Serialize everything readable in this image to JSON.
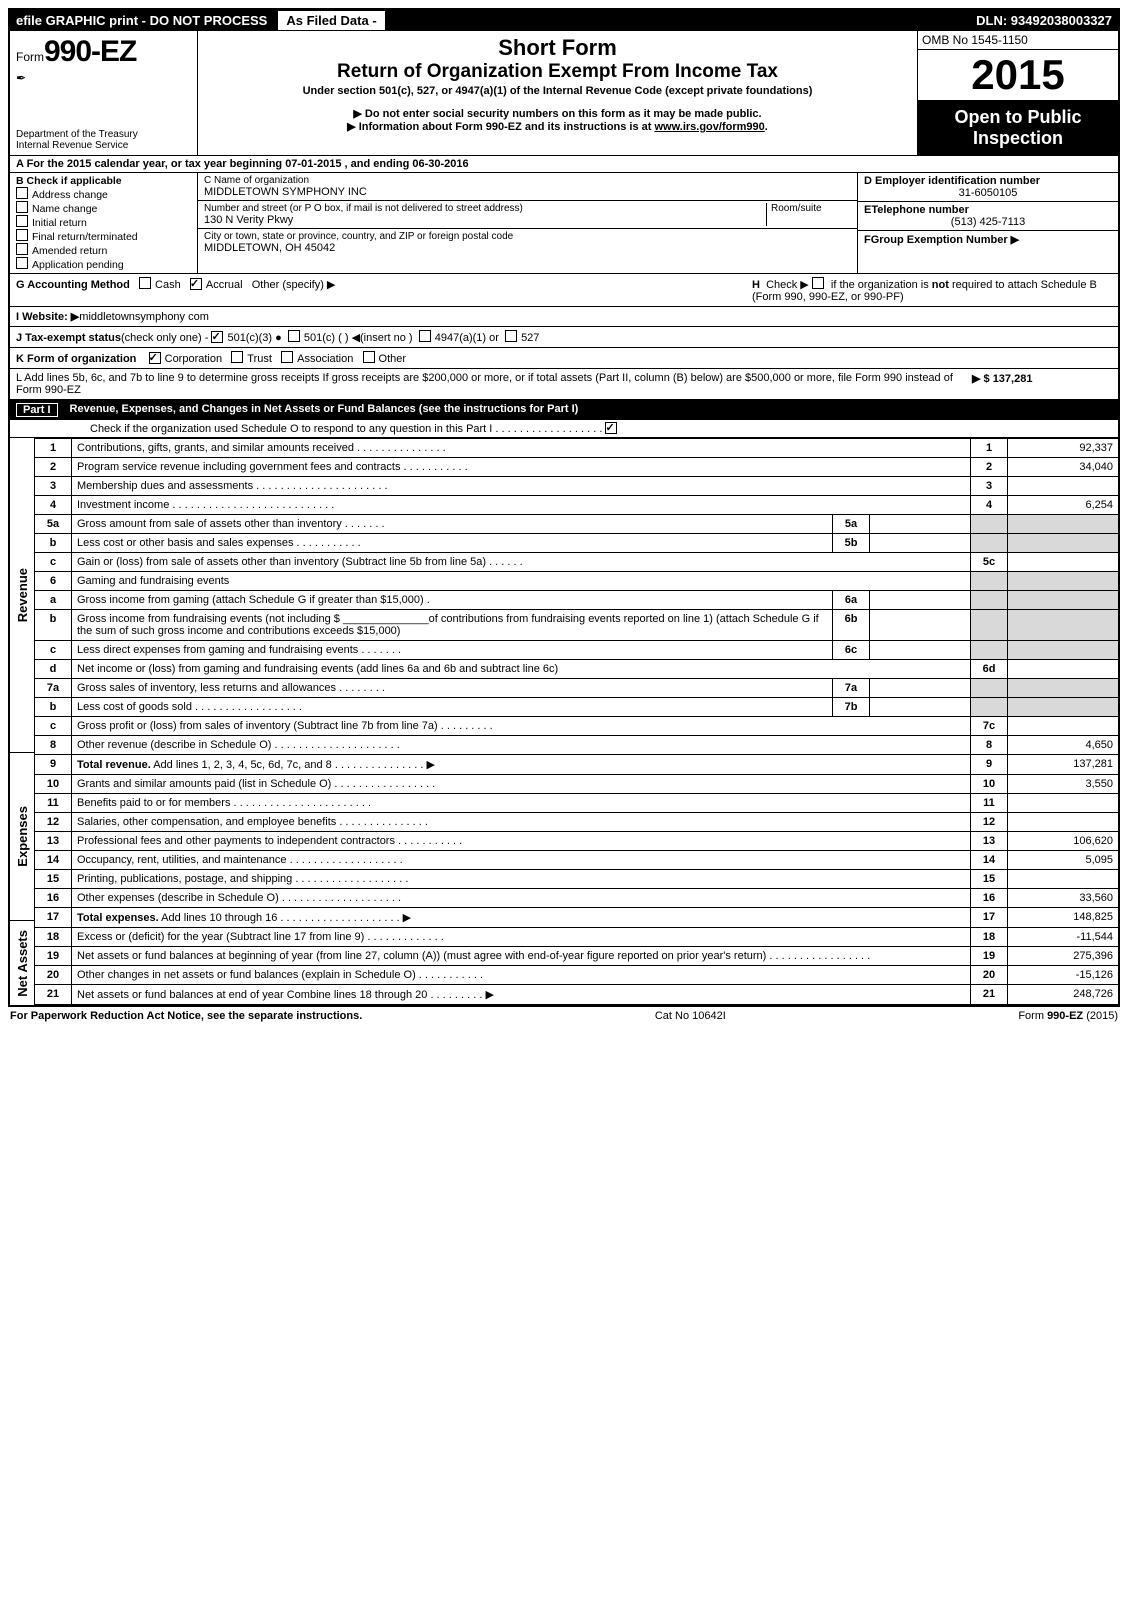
{
  "topbar": {
    "efile": "efile GRAPHIC print - DO NOT PROCESS",
    "asfiled": "As Filed Data -",
    "dln": "DLN: 93492038003327"
  },
  "header": {
    "form_prefix": "Form",
    "form_no": "990-EZ",
    "dept1": "Department of the Treasury",
    "dept2": "Internal Revenue Service",
    "short": "Short Form",
    "title": "Return of Organization Exempt From Income Tax",
    "sub": "Under section 501(c), 527, or 4947(a)(1) of the Internal Revenue Code (except private foundations)",
    "note1": "▶ Do not enter social security numbers on this form as it may be made public.",
    "note2_pre": "▶ Information about Form 990-EZ and its instructions is at ",
    "note2_link": "www.irs.gov/form990",
    "omb": "OMB No  1545-1150",
    "year": "2015",
    "open1": "Open to Public",
    "open2": "Inspection"
  },
  "row_a": "A  For the 2015 calendar year, or tax year beginning 07-01-2015           , and ending 06-30-2016",
  "b": {
    "hdr": "B  Check if applicable",
    "items": [
      "Address change",
      "Name change",
      "Initial return",
      "Final return/terminated",
      "Amended return",
      "Application pending"
    ]
  },
  "c": {
    "name_lbl": "C Name of organization",
    "name": "MIDDLETOWN SYMPHONY INC",
    "street_lbl": "Number and street (or P  O  box, if mail is not delivered to street address)",
    "room_lbl": "Room/suite",
    "street": "130 N Verity Pkwy",
    "city_lbl": "City or town, state or province, country, and ZIP or foreign postal code",
    "city": "MIDDLETOWN, OH  45042"
  },
  "d": {
    "lbl": "D Employer identification number",
    "val": "31-6050105"
  },
  "e": {
    "lbl": "ETelephone number",
    "val": "(513) 425-7113"
  },
  "f": {
    "lbl": "FGroup Exemption Number    ▶"
  },
  "g": {
    "lbl": "G Accounting Method",
    "cash": "Cash",
    "accrual": "Accrual",
    "other": "Other (specify) ▶"
  },
  "h": {
    "text": "H   Check ▶        if the organization is not required to attach Schedule B (Form 990, 990-EZ, or 990-PF)"
  },
  "i": {
    "lbl": "I Website: ▶",
    "val": "middletownsymphony com"
  },
  "j": {
    "lbl": "J Tax-exempt status",
    "rest": "(check only one) -",
    "o1": "501(c)(3)",
    "o2": "501(c) (   ) ◀(insert no )",
    "o3": "4947(a)(1) or",
    "o4": "527"
  },
  "k": {
    "lbl": "K Form of organization",
    "opts": [
      "Corporation",
      "Trust",
      "Association",
      "Other"
    ]
  },
  "l": {
    "text": "L Add lines 5b, 6c, and 7b to line 9 to determine gross receipts  If gross receipts are $200,000 or more, or if total assets (Part II, column (B) below) are $500,000 or more, file Form 990 instead of Form 990-EZ",
    "amt": "▶ $ 137,281"
  },
  "part1": {
    "label": "Part I",
    "title": "Revenue, Expenses, and Changes in Net Assets or Fund Balances",
    "note": "(see the instructions for Part I)",
    "check": "Check if the organization used Schedule O to respond to any question in this Part I  .  .  .  .  .  .  .  .  .  .  .  .  .  .  .  .  .  ."
  },
  "side": {
    "rev": "Revenue",
    "exp": "Expenses",
    "na": "Net Assets"
  },
  "lines": [
    {
      "n": "1",
      "d": "Contributions, gifts, grants, and similar amounts received       .   .   .   .   .   .   .   .   .   .   .   .   .   .   .",
      "num": "1",
      "amt": "92,337"
    },
    {
      "n": "2",
      "d": "Program service revenue including government fees and contracts       .   .   .   .   .   .   .   .   .   .   .",
      "num": "2",
      "amt": "34,040"
    },
    {
      "n": "3",
      "d": "Membership dues and assessments         .   .   .   .   .   .   .   .   .   .   .   .   .   .   .   .   .   .   .   .   .   .",
      "num": "3",
      "amt": ""
    },
    {
      "n": "4",
      "d": "Investment income       .   .   .   .   .   .   .   .   .   .   .   .   .   .   .   .   .   .   .   .   .   .   .   .   .   .   .",
      "num": "4",
      "amt": "6,254"
    },
    {
      "n": "5a",
      "d": "Gross amount from sale of assets other than inventory         .   .   .   .   .   .   .",
      "sub": "5a",
      "samt": ""
    },
    {
      "n": "b",
      "d": "Less  cost or other basis and sales expenses         .   .   .   .   .   .   .   .   .   .   .",
      "sub": "5b",
      "samt": ""
    },
    {
      "n": "c",
      "d": "Gain or (loss) from sale of assets other than inventory (Subtract line 5b from line 5a)    .   .   .   .   .   .",
      "num": "5c",
      "amt": ""
    },
    {
      "n": "6",
      "d": "Gaming and fundraising events",
      "grey": true
    },
    {
      "n": "a",
      "d": "Gross income from gaming (attach Schedule G if greater than $15,000)             .",
      "sub": "6a",
      "samt": ""
    },
    {
      "n": "b",
      "d": "Gross income from fundraising events (not including $ ______________of contributions from fundraising events reported on line 1) (attach Schedule G if the sum of such gross income and contributions exceeds $15,000)",
      "sub": "6b",
      "samt": ""
    },
    {
      "n": "c",
      "d": "Less  direct expenses from gaming and fundraising events       .   .   .   .   .   .   .",
      "sub": "6c",
      "samt": ""
    },
    {
      "n": "d",
      "d": "Net income or (loss) from gaming and fundraising events (add lines 6a and 6b and subtract line 6c)",
      "num": "6d",
      "amt": ""
    },
    {
      "n": "7a",
      "d": "Gross sales of inventory, less returns and allowances         .   .   .   .   .   .   .   .",
      "sub": "7a",
      "samt": ""
    },
    {
      "n": "b",
      "d": "Less  cost of goods sold           .   .   .   .   .   .   .   .   .   .   .   .   .   .   .   .   .   .",
      "sub": "7b",
      "samt": ""
    },
    {
      "n": "c",
      "d": "Gross profit or (loss) from sales of inventory (Subtract line 7b from line 7a)     .   .   .   .   .   .   .   .   .",
      "num": "7c",
      "amt": ""
    },
    {
      "n": "8",
      "d": "Other revenue (describe in Schedule O)      .   .   .   .   .   .   .   .   .   .   .   .   .   .   .   .   .   .   .   .   .",
      "num": "8",
      "amt": "4,650"
    },
    {
      "n": "9",
      "d": "<b>Total revenue.</b> Add lines 1, 2, 3, 4, 5c, 6d, 7c, and 8      .   .   .   .   .   .   .   .   .   .   .   .   .   .   .   ▶",
      "num": "9",
      "amt": "137,281"
    },
    {
      "n": "10",
      "d": "Grants and similar amounts paid (list in Schedule O)    .   .   .   .   .   .   .   .   .   .   .   .   .   .   .   .   .",
      "num": "10",
      "amt": "3,550"
    },
    {
      "n": "11",
      "d": "Benefits paid to or for members       .   .   .   .   .   .   .   .   .   .   .   .   .   .   .   .   .   .   .   .   .   .   .",
      "num": "11",
      "amt": ""
    },
    {
      "n": "12",
      "d": "Salaries, other compensation, and employee benefits         .   .   .   .   .   .   .   .   .   .   .   .   .   .   .",
      "num": "12",
      "amt": ""
    },
    {
      "n": "13",
      "d": "Professional fees and other payments to independent contractors       .   .   .   .   .   .   .   .   .   .   .",
      "num": "13",
      "amt": "106,620"
    },
    {
      "n": "14",
      "d": "Occupancy, rent, utilities, and maintenance       .   .   .   .   .   .   .   .   .   .   .   .   .   .   .   .   .   .   .",
      "num": "14",
      "amt": "5,095"
    },
    {
      "n": "15",
      "d": "Printing, publications, postage, and shipping       .   .   .   .   .   .   .   .   .   .   .   .   .   .   .   .   .   .   .",
      "num": "15",
      "amt": ""
    },
    {
      "n": "16",
      "d": "Other expenses (describe in Schedule O)      .   .   .   .   .   .   .   .   .   .   .   .   .   .   .   .   .   .   .   .",
      "num": "16",
      "amt": "33,560"
    },
    {
      "n": "17",
      "d": "<b>Total expenses.</b> Add lines 10 through 16       .   .   .   .   .   .   .   .   .   .   .   .   .   .   .   .   .   .   .   .   ▶",
      "num": "17",
      "amt": "148,825"
    },
    {
      "n": "18",
      "d": "Excess or (deficit) for the year (Subtract line 17 from line 9)         .   .   .   .   .   .   .   .   .   .   .   .   .",
      "num": "18",
      "amt": "-11,544"
    },
    {
      "n": "19",
      "d": "Net assets or fund balances at beginning of year (from line 27, column (A)) (must agree with end-of-year figure reported on prior year's return)       .   .   .   .   .   .   .   .   .   .   .   .   .   .   .   .   .",
      "num": "19",
      "amt": "275,396"
    },
    {
      "n": "20",
      "d": "Other changes in net assets or fund balances (explain in Schedule O)     .   .   .   .   .   .   .   .   .   .   .",
      "num": "20",
      "amt": "-15,126"
    },
    {
      "n": "21",
      "d": "Net assets or fund balances at end of year  Combine lines 18 through 20     .   .   .   .   .   .   .   .   . ▶",
      "num": "21",
      "amt": "248,726"
    }
  ],
  "footer": {
    "left": "For Paperwork Reduction Act Notice, see the separate instructions.",
    "mid": "Cat  No  10642I",
    "right": "Form 990-EZ (2015)"
  }
}
